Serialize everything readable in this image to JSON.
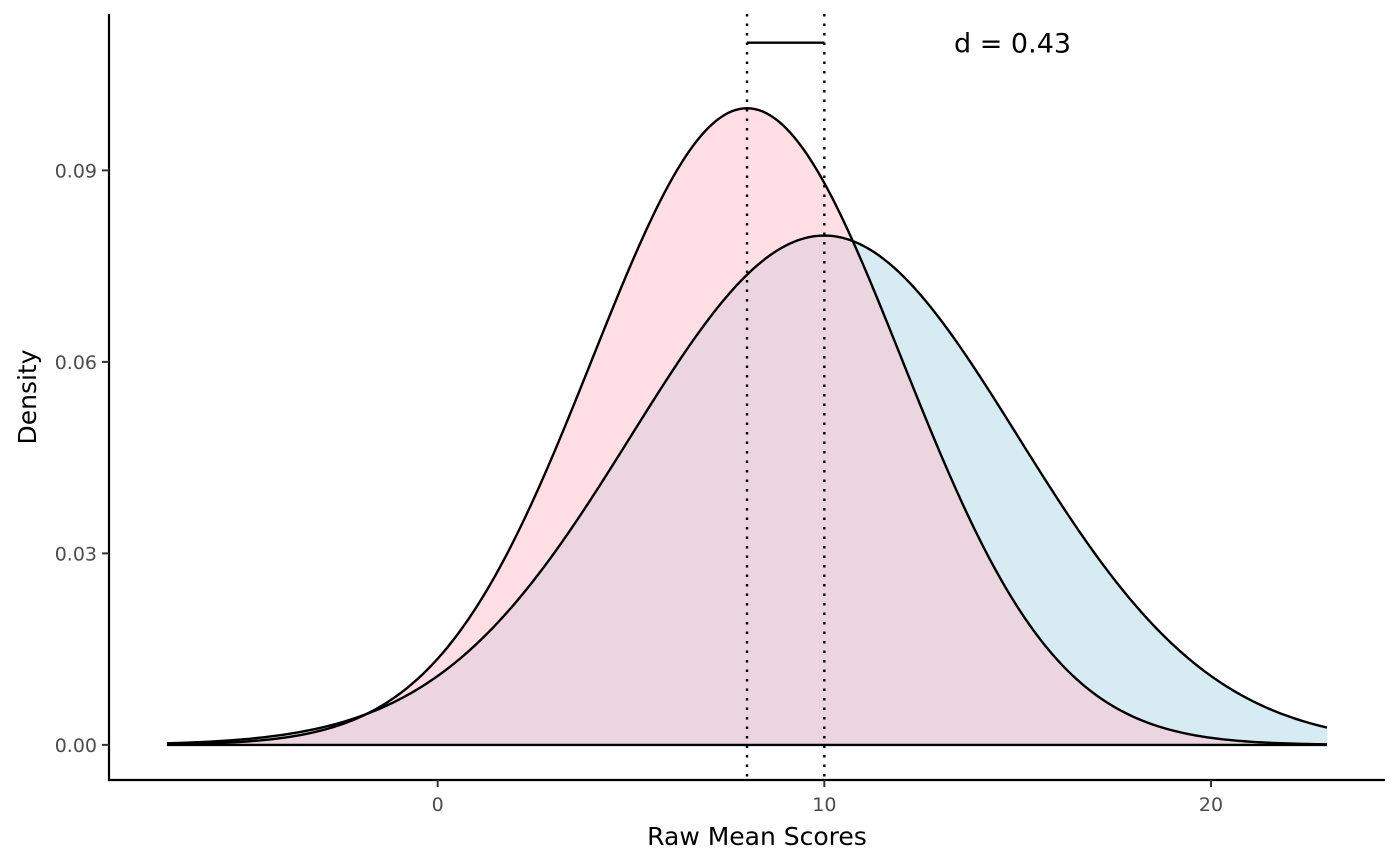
{
  "chart_data": {
    "type": "area",
    "xlabel": "Raw Mean Scores",
    "ylabel": "Density",
    "xlim": [
      -8.5,
      24.5
    ],
    "ylim": [
      -0.0055,
      0.1145
    ],
    "x_ticks": [
      0,
      10,
      20
    ],
    "x_tick_labels": [
      "0",
      "10",
      "20"
    ],
    "y_ticks": [
      0.0,
      0.03,
      0.06,
      0.09
    ],
    "y_tick_labels": [
      "0.00",
      "0.03",
      "0.06",
      "0.09"
    ],
    "x_range": [
      -7,
      23
    ],
    "grid": false,
    "series": [
      {
        "distribution": "normal",
        "mean": 10,
        "sd": 5,
        "fill": "#add8e6",
        "stroke": "#000000"
      },
      {
        "distribution": "normal",
        "mean": 8,
        "sd": 4,
        "fill": "#ffc0cb",
        "stroke": "#000000"
      }
    ],
    "mean_lines": [
      8,
      10
    ],
    "effect_size": {
      "label": "d = 0.43",
      "bracket_from": 8,
      "bracket_to": 10,
      "y": 0.11
    }
  }
}
